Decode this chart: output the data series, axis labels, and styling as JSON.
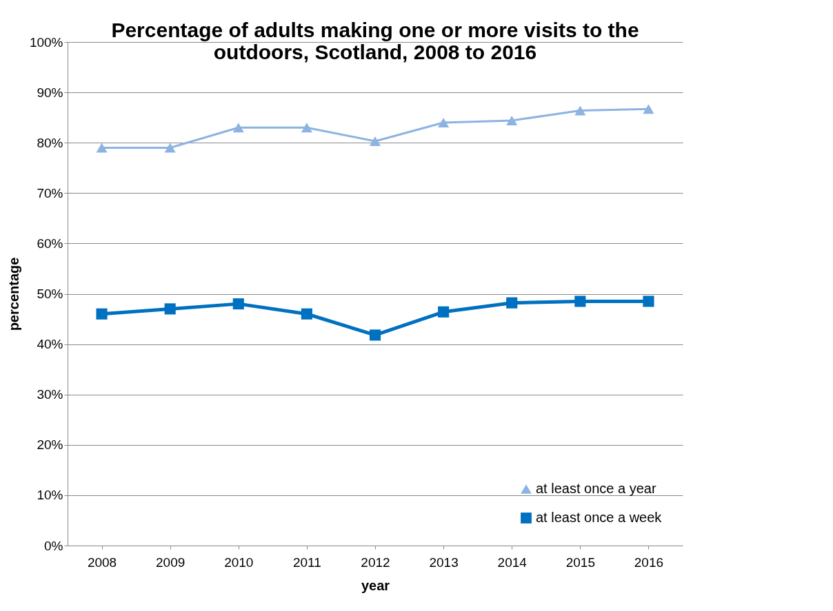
{
  "chart_data": {
    "type": "line",
    "title": "Percentage of adults making one or more visits to the outdoors, Scotland, 2008 to 2016",
    "xlabel": "year",
    "ylabel": "percentage",
    "categories": [
      "2008",
      "2009",
      "2010",
      "2011",
      "2012",
      "2013",
      "2014",
      "2015",
      "2016"
    ],
    "series": [
      {
        "name": "at least once a year",
        "color": "#8db3e2",
        "marker": "triangle",
        "values": [
          79,
          79,
          83,
          83,
          80.3,
          84,
          84.4,
          86.4,
          86.7
        ]
      },
      {
        "name": "at least once a week",
        "color": "#0070c0",
        "marker": "square",
        "values": [
          46,
          47,
          48,
          46,
          41.8,
          46.4,
          48.2,
          48.5,
          48.5
        ]
      }
    ],
    "ylim": [
      0,
      100
    ],
    "yticks": [
      {
        "value": 0,
        "label": "0%"
      },
      {
        "value": 10,
        "label": "10%"
      },
      {
        "value": 20,
        "label": "20%"
      },
      {
        "value": 30,
        "label": "30%"
      },
      {
        "value": 40,
        "label": "40%"
      },
      {
        "value": 50,
        "label": "50%"
      },
      {
        "value": 60,
        "label": "60%"
      },
      {
        "value": 70,
        "label": "70%"
      },
      {
        "value": 80,
        "label": "80%"
      },
      {
        "value": 90,
        "label": "90%"
      },
      {
        "value": 100,
        "label": "100%"
      }
    ],
    "grid": "y",
    "legend": "bottom right",
    "line_style": "solid"
  }
}
